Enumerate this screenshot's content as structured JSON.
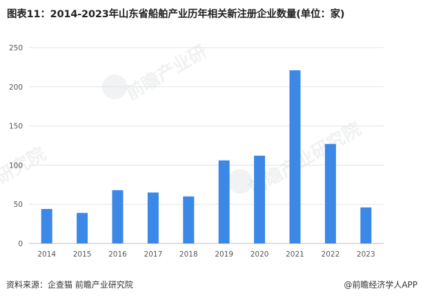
{
  "chart_data": {
    "type": "bar",
    "title": "图表11：2014-2023年山东省船舶产业历年相关新注册企业数量(单位：家)",
    "categories": [
      "2014",
      "2015",
      "2016",
      "2017",
      "2018",
      "2019",
      "2020",
      "2021",
      "2022",
      "2023"
    ],
    "values": [
      44,
      39,
      68,
      65,
      60,
      106,
      112,
      221,
      127,
      46
    ],
    "ylim": [
      0,
      250
    ],
    "yticks": [
      0,
      50,
      100,
      150,
      200,
      250
    ],
    "grid": true,
    "bar_color": "#3b88e6"
  },
  "footer": {
    "source": "资料来源：企查猫 前瞻产业研究院",
    "credit": "@前瞻经济学人APP"
  }
}
